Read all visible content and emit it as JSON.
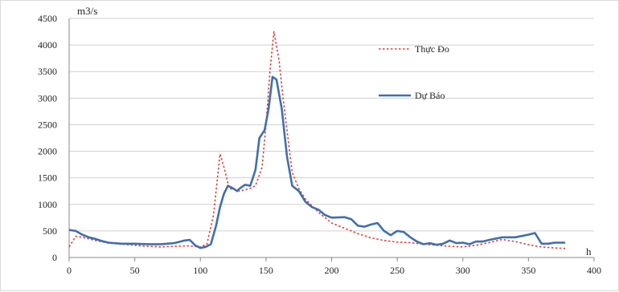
{
  "chart_data": {
    "type": "line",
    "title": "",
    "xlabel": "h",
    "ylabel": "m3/s",
    "xlim": [
      0,
      400
    ],
    "ylim": [
      0,
      4500
    ],
    "x_ticks": [
      "0",
      "50",
      "100",
      "150",
      "200",
      "250",
      "300",
      "350",
      "400"
    ],
    "y_ticks": [
      "0",
      "500",
      "1000",
      "1500",
      "2000",
      "2500",
      "3000",
      "3500",
      "4000",
      "4500"
    ],
    "grid": "horizontal",
    "legend_position": "upper-right",
    "series": [
      {
        "name": "Thực Đo",
        "style": "dotted",
        "color": "#e0403a",
        "points": [
          [
            0,
            200
          ],
          [
            5,
            400
          ],
          [
            10,
            380
          ],
          [
            20,
            320
          ],
          [
            30,
            270
          ],
          [
            40,
            250
          ],
          [
            50,
            230
          ],
          [
            60,
            210
          ],
          [
            70,
            200
          ],
          [
            80,
            210
          ],
          [
            90,
            220
          ],
          [
            100,
            200
          ],
          [
            105,
            250
          ],
          [
            110,
            800
          ],
          [
            115,
            1950
          ],
          [
            118,
            1700
          ],
          [
            122,
            1300
          ],
          [
            130,
            1250
          ],
          [
            138,
            1300
          ],
          [
            142,
            1350
          ],
          [
            147,
            1700
          ],
          [
            150,
            2500
          ],
          [
            153,
            3500
          ],
          [
            156,
            4250
          ],
          [
            160,
            3700
          ],
          [
            163,
            3000
          ],
          [
            167,
            2200
          ],
          [
            170,
            1600
          ],
          [
            175,
            1300
          ],
          [
            180,
            1100
          ],
          [
            190,
            850
          ],
          [
            200,
            650
          ],
          [
            210,
            550
          ],
          [
            220,
            450
          ],
          [
            230,
            370
          ],
          [
            240,
            320
          ],
          [
            250,
            290
          ],
          [
            260,
            280
          ],
          [
            270,
            250
          ],
          [
            280,
            230
          ],
          [
            290,
            210
          ],
          [
            300,
            200
          ],
          [
            310,
            230
          ],
          [
            320,
            280
          ],
          [
            330,
            340
          ],
          [
            340,
            300
          ],
          [
            350,
            240
          ],
          [
            360,
            200
          ],
          [
            370,
            180
          ],
          [
            378,
            170
          ]
        ]
      },
      {
        "name": "Dự Báo",
        "style": "solid",
        "color": "#3f6fae",
        "points": [
          [
            0,
            520
          ],
          [
            5,
            500
          ],
          [
            10,
            430
          ],
          [
            15,
            380
          ],
          [
            20,
            350
          ],
          [
            25,
            310
          ],
          [
            30,
            280
          ],
          [
            40,
            260
          ],
          [
            50,
            260
          ],
          [
            60,
            250
          ],
          [
            70,
            250
          ],
          [
            80,
            270
          ],
          [
            88,
            320
          ],
          [
            92,
            330
          ],
          [
            96,
            230
          ],
          [
            100,
            180
          ],
          [
            104,
            200
          ],
          [
            108,
            250
          ],
          [
            112,
            600
          ],
          [
            115,
            950
          ],
          [
            118,
            1200
          ],
          [
            121,
            1350
          ],
          [
            125,
            1300
          ],
          [
            128,
            1250
          ],
          [
            130,
            1300
          ],
          [
            134,
            1370
          ],
          [
            138,
            1350
          ],
          [
            142,
            1650
          ],
          [
            145,
            2250
          ],
          [
            149,
            2400
          ],
          [
            152,
            2800
          ],
          [
            155,
            3400
          ],
          [
            158,
            3350
          ],
          [
            162,
            2800
          ],
          [
            166,
            1900
          ],
          [
            170,
            1350
          ],
          [
            175,
            1250
          ],
          [
            180,
            1050
          ],
          [
            185,
            950
          ],
          [
            190,
            900
          ],
          [
            195,
            800
          ],
          [
            200,
            750
          ],
          [
            210,
            760
          ],
          [
            215,
            720
          ],
          [
            220,
            600
          ],
          [
            225,
            580
          ],
          [
            230,
            620
          ],
          [
            235,
            650
          ],
          [
            240,
            500
          ],
          [
            245,
            420
          ],
          [
            250,
            500
          ],
          [
            255,
            480
          ],
          [
            260,
            380
          ],
          [
            265,
            300
          ],
          [
            270,
            250
          ],
          [
            275,
            270
          ],
          [
            280,
            240
          ],
          [
            285,
            260
          ],
          [
            290,
            320
          ],
          [
            295,
            270
          ],
          [
            300,
            280
          ],
          [
            305,
            250
          ],
          [
            310,
            300
          ],
          [
            315,
            300
          ],
          [
            320,
            330
          ],
          [
            330,
            380
          ],
          [
            340,
            380
          ],
          [
            350,
            430
          ],
          [
            355,
            460
          ],
          [
            360,
            260
          ],
          [
            365,
            260
          ],
          [
            370,
            280
          ],
          [
            378,
            280
          ]
        ]
      }
    ]
  }
}
